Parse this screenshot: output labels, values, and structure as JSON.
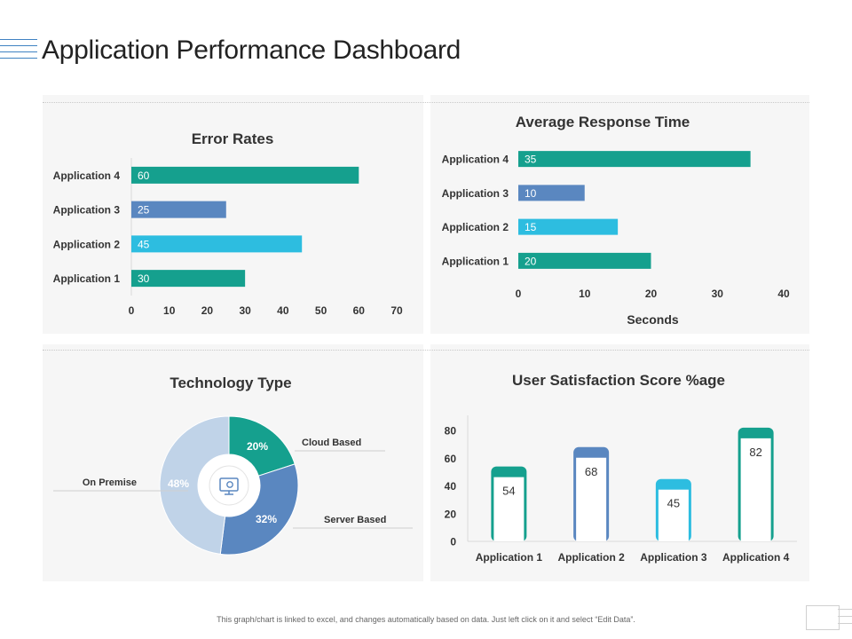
{
  "page": {
    "title": "Application Performance Dashboard",
    "footer": "This graph/chart is linked to excel, and changes automatically based on data.  Just left click on it and select “Edit Data”."
  },
  "colors": {
    "teal": "#15a08e",
    "steel": "#5a87c0",
    "cyan": "#2dbde0",
    "light": "#c0d3e8",
    "grid": "#d9d9d9",
    "panel": "#f6f6f6"
  },
  "chart_data": [
    {
      "type": "bar",
      "orientation": "horizontal",
      "title": "Error Rates",
      "categories": [
        "Application 1",
        "Application 2",
        "Application 3",
        "Application 4"
      ],
      "values": [
        30,
        45,
        25,
        60
      ],
      "colors": [
        "teal",
        "cyan",
        "steel",
        "teal"
      ],
      "xlim": [
        0,
        70
      ],
      "xticks": [
        0,
        10,
        20,
        30,
        40,
        50,
        60,
        70
      ],
      "xlabel": ""
    },
    {
      "type": "bar",
      "orientation": "horizontal",
      "title": "Average Response Time",
      "categories": [
        "Application 1",
        "Application 2",
        "Application 3",
        "Application 4"
      ],
      "values": [
        20,
        15,
        10,
        35
      ],
      "colors": [
        "teal",
        "cyan",
        "steel",
        "teal"
      ],
      "xlim": [
        0,
        40
      ],
      "xticks": [
        0,
        10,
        20,
        30,
        40
      ],
      "xlabel": "Seconds"
    },
    {
      "type": "pie",
      "title": "Technology Type",
      "slices": [
        {
          "label": "Cloud Based",
          "value": 20,
          "pct_label": "20%",
          "color": "teal"
        },
        {
          "label": "Server Based",
          "value": 32,
          "pct_label": "32%",
          "color": "steel"
        },
        {
          "label": "On Premise",
          "value": 48,
          "pct_label": "48%",
          "color": "light"
        }
      ],
      "center_icon": "monitor-gear-icon"
    },
    {
      "type": "bar",
      "orientation": "vertical",
      "title": "User Satisfaction Score %age",
      "categories": [
        "Application 1",
        "Application 2",
        "Application 3",
        "Application 4"
      ],
      "values": [
        54,
        68,
        45,
        82
      ],
      "colors": [
        "teal",
        "steel",
        "cyan",
        "teal"
      ],
      "ylim": [
        0,
        90
      ],
      "yticks": [
        0,
        20,
        40,
        60,
        80
      ]
    }
  ]
}
